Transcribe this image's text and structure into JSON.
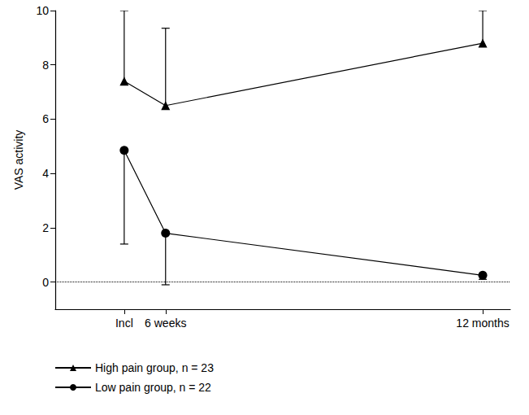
{
  "chart_data": {
    "type": "line",
    "y_label": "VAS activity",
    "x": [
      0,
      6,
      52
    ],
    "xlim": [
      -10,
      56
    ],
    "xticks": [
      {
        "value": 0,
        "label": "Incl"
      },
      {
        "value": 6,
        "label": "6 weeks"
      },
      {
        "value": 52,
        "label": "12 months"
      }
    ],
    "ylim": [
      -1,
      10
    ],
    "yticks": [
      0,
      2,
      4,
      6,
      8,
      10
    ],
    "hline": 0,
    "grid": false,
    "legend": "bottom-left",
    "series": [
      {
        "name": "High pain group, n = 23",
        "color": "#000000",
        "marker": "triangle",
        "line_style": "solid",
        "values": [
          7.4,
          6.5,
          8.8
        ],
        "error_upper": [
          2.6,
          2.85,
          1.2
        ]
      },
      {
        "name": "Low pain group, n = 22",
        "color": "#000000",
        "marker": "circle",
        "line_style": "solid",
        "values": [
          4.85,
          1.8,
          0.25
        ],
        "error_lower": [
          3.45,
          1.9,
          0.15
        ]
      }
    ]
  }
}
